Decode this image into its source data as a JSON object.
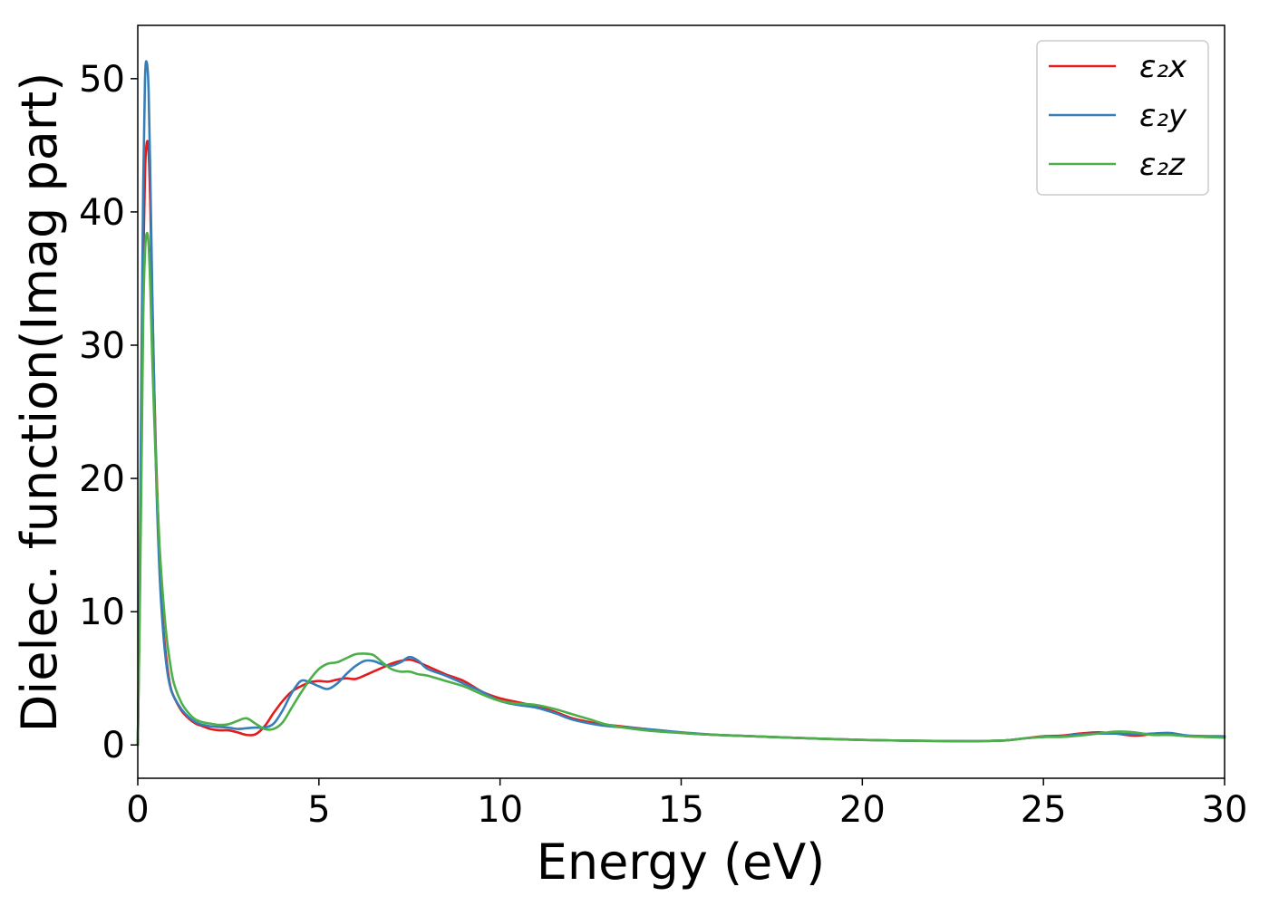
{
  "chart_data": {
    "type": "line",
    "title": "",
    "xlabel": "Energy (eV)",
    "ylabel": "Dielec. function(Imag part)",
    "xlim": [
      0,
      30
    ],
    "ylim": [
      -2.5,
      54
    ],
    "xticks": [
      0,
      5,
      10,
      15,
      20,
      25,
      30
    ],
    "yticks": [
      0,
      10,
      20,
      30,
      40,
      50
    ],
    "xtick_labels": [
      "0",
      "5",
      "10",
      "15",
      "20",
      "25",
      "30"
    ],
    "ytick_labels": [
      "0",
      "10",
      "20",
      "30",
      "40",
      "50"
    ],
    "grid": false,
    "legend_position": "top-right",
    "x": [
      0,
      0.05,
      0.1,
      0.15,
      0.2,
      0.25,
      0.3,
      0.35,
      0.4,
      0.5,
      0.6,
      0.7,
      0.8,
      0.9,
      1.0,
      1.2,
      1.4,
      1.6,
      1.8,
      2.0,
      2.25,
      2.5,
      2.75,
      3.0,
      3.25,
      3.5,
      3.75,
      4.0,
      4.25,
      4.5,
      4.75,
      5.0,
      5.25,
      5.5,
      5.75,
      6.0,
      6.25,
      6.5,
      6.75,
      7.0,
      7.25,
      7.5,
      7.75,
      8.0,
      8.5,
      9.0,
      9.5,
      10.0,
      10.5,
      11.0,
      11.5,
      12.0,
      12.5,
      13.0,
      14.0,
      15.0,
      16.0,
      17.0,
      18.0,
      19.0,
      20.0,
      21.0,
      22.0,
      23.0,
      23.5,
      24.0,
      24.5,
      25.0,
      25.5,
      26.0,
      26.5,
      27.0,
      27.5,
      28.0,
      28.5,
      29.0,
      30.0
    ],
    "series": [
      {
        "name": "ε₂x",
        "color": "#e41a1c",
        "values": [
          0,
          10,
          24,
          36,
          43,
          45.2,
          44.5,
          40,
          33,
          22,
          14,
          9,
          6.2,
          4.4,
          3.6,
          2.6,
          2.0,
          1.6,
          1.4,
          1.2,
          1.1,
          1.1,
          0.95,
          0.75,
          0.8,
          1.4,
          2.4,
          3.3,
          4.0,
          4.4,
          4.7,
          4.8,
          4.75,
          4.9,
          5.0,
          4.95,
          5.2,
          5.5,
          5.8,
          6.1,
          6.3,
          6.4,
          6.2,
          5.9,
          5.3,
          4.8,
          4.0,
          3.5,
          3.2,
          2.9,
          2.5,
          2.0,
          1.7,
          1.5,
          1.2,
          0.9,
          0.75,
          0.65,
          0.55,
          0.45,
          0.38,
          0.33,
          0.3,
          0.28,
          0.3,
          0.35,
          0.5,
          0.65,
          0.7,
          0.85,
          0.95,
          0.85,
          0.7,
          0.8,
          0.85,
          0.65,
          0.6
        ]
      },
      {
        "name": "ε₂y",
        "color": "#377eb8",
        "values": [
          0,
          12,
          28,
          42,
          50,
          51.2,
          49,
          42,
          34,
          21,
          13,
          8.5,
          5.8,
          4.3,
          3.6,
          2.7,
          2.1,
          1.7,
          1.5,
          1.4,
          1.35,
          1.3,
          1.2,
          1.25,
          1.3,
          1.3,
          1.6,
          2.6,
          3.9,
          4.8,
          4.7,
          4.4,
          4.2,
          4.6,
          5.3,
          5.9,
          6.3,
          6.3,
          6.05,
          5.95,
          6.2,
          6.6,
          6.3,
          5.7,
          5.2,
          4.6,
          4.0,
          3.3,
          3.0,
          2.8,
          2.4,
          1.9,
          1.6,
          1.4,
          1.2,
          0.95,
          0.75,
          0.65,
          0.55,
          0.45,
          0.38,
          0.33,
          0.3,
          0.28,
          0.3,
          0.35,
          0.5,
          0.6,
          0.65,
          0.8,
          0.85,
          0.85,
          0.8,
          0.85,
          0.9,
          0.7,
          0.65
        ]
      },
      {
        "name": "ε₂z",
        "color": "#4daf4a",
        "values": [
          0,
          9,
          20,
          32,
          37,
          38.4,
          37.5,
          34,
          29,
          21,
          15,
          11,
          8,
          6.0,
          4.6,
          3.2,
          2.4,
          1.9,
          1.7,
          1.6,
          1.5,
          1.55,
          1.8,
          2.0,
          1.6,
          1.2,
          1.2,
          1.7,
          2.8,
          3.9,
          4.9,
          5.7,
          6.1,
          6.2,
          6.5,
          6.8,
          6.85,
          6.75,
          6.2,
          5.7,
          5.5,
          5.5,
          5.3,
          5.2,
          4.8,
          4.4,
          3.8,
          3.3,
          3.1,
          3.0,
          2.7,
          2.3,
          1.9,
          1.5,
          1.1,
          0.9,
          0.75,
          0.65,
          0.55,
          0.45,
          0.38,
          0.33,
          0.3,
          0.28,
          0.3,
          0.35,
          0.5,
          0.6,
          0.6,
          0.7,
          0.85,
          1.0,
          0.95,
          0.75,
          0.75,
          0.65,
          0.55
        ]
      }
    ]
  }
}
